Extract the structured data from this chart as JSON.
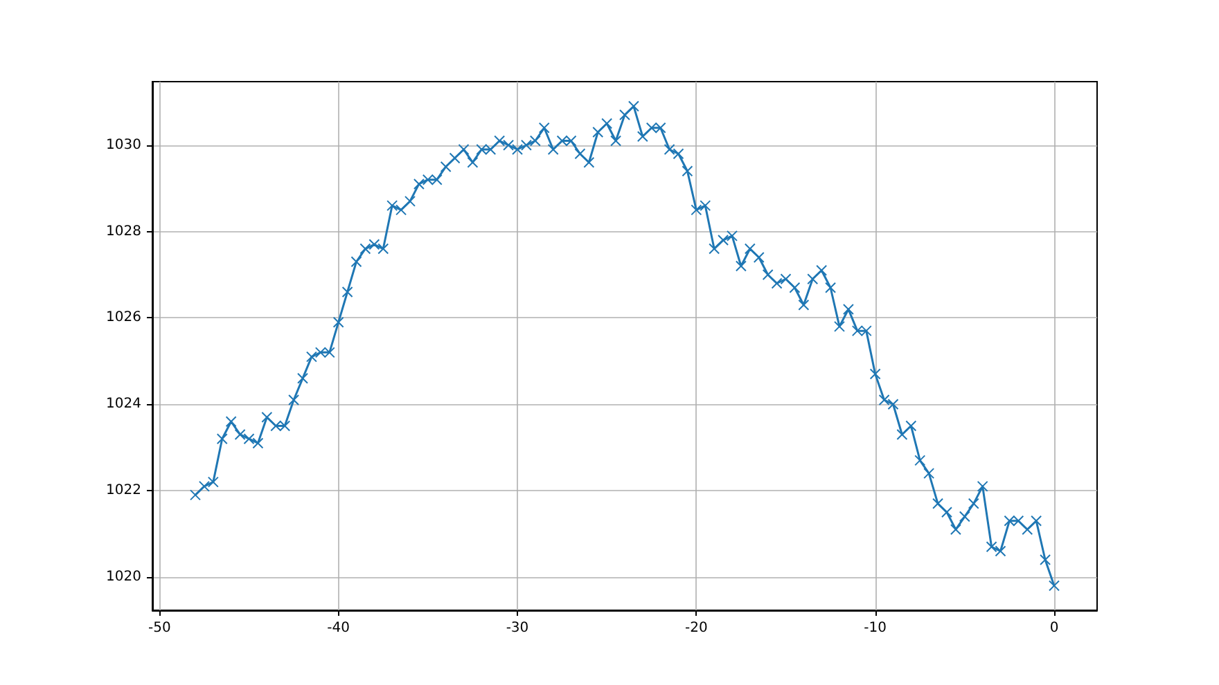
{
  "chart_data": {
    "type": "line",
    "x": [
      -48,
      -47.5,
      -47,
      -46.5,
      -46,
      -45.5,
      -45,
      -44.5,
      -44,
      -43.5,
      -43,
      -42.5,
      -42,
      -41.5,
      -41,
      -40.5,
      -40,
      -39.5,
      -39,
      -38.5,
      -38,
      -37.5,
      -37,
      -36.5,
      -36,
      -35.5,
      -35,
      -34.5,
      -34,
      -33.5,
      -33,
      -32.5,
      -32,
      -31.5,
      -31,
      -30.5,
      -30,
      -29.5,
      -29,
      -28.5,
      -28,
      -27.5,
      -27,
      -26.5,
      -26,
      -25.5,
      -25,
      -24.5,
      -24,
      -23.5,
      -23,
      -22.5,
      -22,
      -21.5,
      -21,
      -20.5,
      -20,
      -19.5,
      -19,
      -18.5,
      -18,
      -17.5,
      -17,
      -16.5,
      -16,
      -15.5,
      -15,
      -14.5,
      -14,
      -13.5,
      -13,
      -12.5,
      -12,
      -11.5,
      -11,
      -10.5,
      -10,
      -9.5,
      -9,
      -8.5,
      -8,
      -7.5,
      -7,
      -6.5,
      -6,
      -5.5,
      -5,
      -4.5,
      -4,
      -3.5,
      -3,
      -2.5,
      -2,
      -1.5,
      -1,
      -0.5,
      0
    ],
    "series": [
      {
        "color": "#1f77b4",
        "values": [
          1021.9,
          1022.1,
          1022.2,
          1023.2,
          1023.6,
          1023.3,
          1023.2,
          1023.1,
          1023.7,
          1023.5,
          1023.5,
          1024.1,
          1024.6,
          1025.1,
          1025.2,
          1025.2,
          1025.9,
          1026.6,
          1027.3,
          1027.6,
          1027.7,
          1027.6,
          1028.6,
          1028.5,
          1028.7,
          1029.1,
          1029.2,
          1029.2,
          1029.5,
          1029.7,
          1029.9,
          1029.6,
          1029.9,
          1029.9,
          1030.1,
          1030.0,
          1029.9,
          1030.0,
          1030.1,
          1030.4,
          1029.9,
          1030.1,
          1030.1,
          1029.8,
          1029.6,
          1030.3,
          1030.5,
          1030.1,
          1030.7,
          1030.9,
          1030.2,
          1030.4,
          1030.4,
          1029.9,
          1029.8,
          1029.4,
          1028.5,
          1028.6,
          1027.6,
          1027.8,
          1027.9,
          1027.2,
          1027.6,
          1027.4,
          1027.0,
          1026.8,
          1026.9,
          1026.7,
          1026.3,
          1026.9,
          1027.1,
          1026.7,
          1025.8,
          1026.2,
          1025.7,
          1025.7,
          1024.7,
          1024.1,
          1024.0,
          1023.3,
          1023.5,
          1022.7,
          1022.4,
          1021.7,
          1021.5,
          1021.1,
          1021.4,
          1021.7,
          1022.1,
          1020.7,
          1020.6,
          1021.3,
          1021.3,
          1021.1,
          1021.3,
          1020.4,
          1019.8
        ]
      }
    ],
    "xlim": [
      -50.4,
      2.4
    ],
    "ylim": [
      1019.23,
      1031.47
    ],
    "xticks": [
      -50,
      -40,
      -30,
      -20,
      -10,
      0
    ],
    "yticks": [
      1020,
      1022,
      1024,
      1026,
      1028,
      1030
    ],
    "grid": true,
    "marker": "cross",
    "line_style": "solid"
  }
}
